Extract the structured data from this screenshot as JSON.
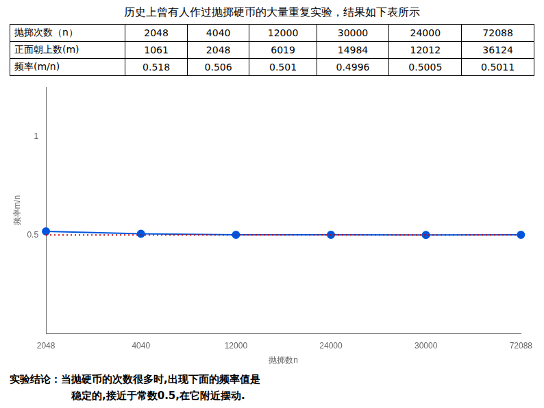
{
  "chart_data": {
    "type": "line",
    "title": "历史上曾有人作过抛掷硬币的大量重复实验，结果如下表所示",
    "table": [
      [
        "抛掷次数（n）",
        "2048",
        "4040",
        "12000",
        "30000",
        "24000",
        "72088"
      ],
      [
        "正面朝上数(m)",
        "1061",
        "2048",
        "6019",
        "14984",
        "12012",
        "36124"
      ],
      [
        "频率(m/n)",
        "0.518",
        "0.506",
        "0.501",
        "0.4996",
        "0.5005",
        "0.5011"
      ]
    ],
    "categories": [
      "2048",
      "4040",
      "12000",
      "24000",
      "30000",
      "72088"
    ],
    "values": [
      0.518,
      0.506,
      0.501,
      0.5005,
      0.4996,
      0.5011
    ],
    "color": "#0055DD",
    "marker": "circle",
    "xlabel": "抛掷数n",
    "ylabel": "频率m/n",
    "ylim": [
      0,
      1.25
    ],
    "yticks": [
      0.5,
      1
    ],
    "hline": {
      "value": 0.5,
      "color": "#CC0000",
      "line_style": "dotted"
    },
    "grid": false,
    "annotations": [
      [
        "实验结论：",
        "当抛硬币的次数很多时,出现下面的",
        "频率值是"
      ],
      [
        "稳定的,接近于常数",
        "0.5",
        ",在它附近摆动."
      ]
    ]
  }
}
